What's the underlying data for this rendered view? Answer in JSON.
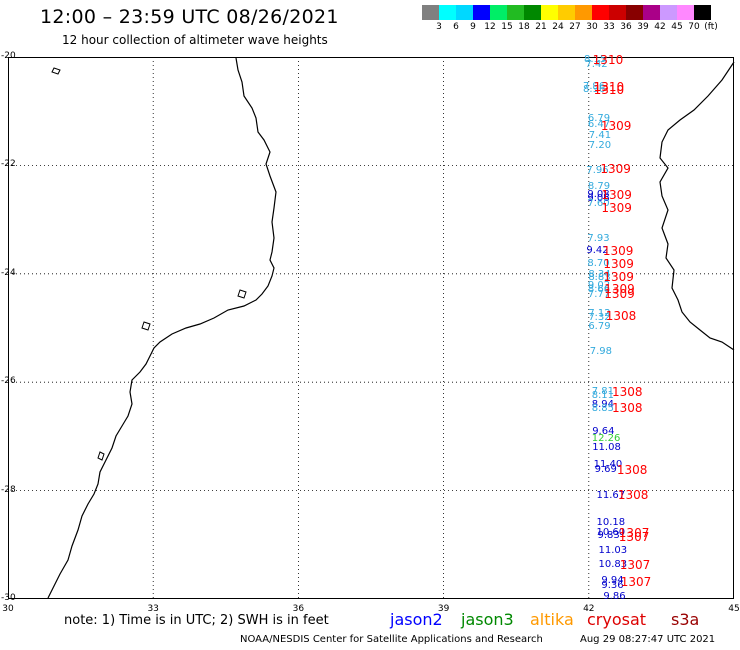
{
  "header": {
    "title": "12:00 – 23:59 UTC 08/26/2021",
    "subtitle": "12 hour collection of altimeter wave heights"
  },
  "scale": {
    "colors": [
      "#808080",
      "#00ffff",
      "#00d8ff",
      "#0000ff",
      "#00ee66",
      "#22bb22",
      "#008800",
      "#ffff00",
      "#ffcc00",
      "#ff9900",
      "#ff0000",
      "#cc0000",
      "#880000",
      "#aa0088",
      "#cc99ff",
      "#ff88ff",
      "#000000"
    ],
    "labels": [
      "3",
      "6",
      "9",
      "12",
      "15",
      "18",
      "21",
      "24",
      "27",
      "30",
      "33",
      "36",
      "39",
      "42",
      "45",
      "70",
      "(ft)"
    ]
  },
  "axes": {
    "lat_labels": [
      "-20",
      "-22",
      "-24",
      "-26",
      "-28",
      "-30"
    ],
    "lon_labels": [
      "30",
      "33",
      "36",
      "39",
      "42",
      "45"
    ]
  },
  "observations": {
    "values": [
      {
        "text": "8.15",
        "lat": -20.05,
        "lon": 41.9,
        "color": "#33aadd"
      },
      {
        "text": "7.42",
        "lat": -20.15,
        "lon": 41.93,
        "color": "#33aadd"
      },
      {
        "text": "7.96",
        "lat": -20.55,
        "lon": 41.88,
        "color": "#33aadd"
      },
      {
        "text": "8.96",
        "lat": -20.6,
        "lon": 41.88,
        "color": "#33aadd"
      },
      {
        "text": "6.79",
        "lat": -21.15,
        "lon": 41.98,
        "color": "#33aadd"
      },
      {
        "text": "6.47",
        "lat": -21.25,
        "lon": 41.98,
        "color": "#33aadd"
      },
      {
        "text": "7.41",
        "lat": -21.45,
        "lon": 42.0,
        "color": "#33aadd"
      },
      {
        "text": "7.20",
        "lat": -21.65,
        "lon": 42.0,
        "color": "#33aadd"
      },
      {
        "text": "7.96",
        "lat": -22.1,
        "lon": 41.95,
        "color": "#33aadd"
      },
      {
        "text": "8.79",
        "lat": -22.4,
        "lon": 41.98,
        "color": "#33aadd"
      },
      {
        "text": "9.08",
        "lat": -22.55,
        "lon": 41.97,
        "color": "#0000cc"
      },
      {
        "text": "9.06",
        "lat": -22.62,
        "lon": 41.97,
        "color": "#0000cc"
      },
      {
        "text": "7.60",
        "lat": -22.72,
        "lon": 41.97,
        "color": "#33aadd"
      },
      {
        "text": "7.93",
        "lat": -23.35,
        "lon": 41.97,
        "color": "#33aadd"
      },
      {
        "text": "9.42",
        "lat": -23.58,
        "lon": 41.95,
        "color": "#0000cc"
      },
      {
        "text": "8.70",
        "lat": -23.82,
        "lon": 41.97,
        "color": "#33aadd"
      },
      {
        "text": "8.34",
        "lat": -24.02,
        "lon": 41.99,
        "color": "#33aadd"
      },
      {
        "text": "8.83",
        "lat": -24.08,
        "lon": 41.99,
        "color": "#33aadd"
      },
      {
        "text": "9.02",
        "lat": -24.23,
        "lon": 41.98,
        "color": "#33aadd"
      },
      {
        "text": "8.66",
        "lat": -24.3,
        "lon": 41.98,
        "color": "#33aadd"
      },
      {
        "text": "7.77",
        "lat": -24.4,
        "lon": 41.98,
        "color": "#33aadd"
      },
      {
        "text": "7.12",
        "lat": -24.75,
        "lon": 41.99,
        "color": "#33aadd"
      },
      {
        "text": "7.32",
        "lat": -24.82,
        "lon": 41.99,
        "color": "#33aadd"
      },
      {
        "text": "6.79",
        "lat": -24.98,
        "lon": 41.99,
        "color": "#33aadd"
      },
      {
        "text": "7.98",
        "lat": -25.45,
        "lon": 42.02,
        "color": "#33aadd"
      },
      {
        "text": "7.81",
        "lat": -26.18,
        "lon": 42.06,
        "color": "#33aadd"
      },
      {
        "text": "8.11",
        "lat": -26.26,
        "lon": 42.06,
        "color": "#33aadd"
      },
      {
        "text": "8.94",
        "lat": -26.42,
        "lon": 42.06,
        "color": "#0000cc"
      },
      {
        "text": "8.85",
        "lat": -26.5,
        "lon": 42.06,
        "color": "#33aadd"
      },
      {
        "text": "9.64",
        "lat": -26.92,
        "lon": 42.07,
        "color": "#0000cc"
      },
      {
        "text": "12.26",
        "lat": -27.04,
        "lon": 42.06,
        "color": "#33cc33"
      },
      {
        "text": "11.08",
        "lat": -27.22,
        "lon": 42.07,
        "color": "#0000cc"
      },
      {
        "text": "11.40",
        "lat": -27.52,
        "lon": 42.1,
        "color": "#0000cc"
      },
      {
        "text": "9.69",
        "lat": -27.62,
        "lon": 42.12,
        "color": "#0000cc"
      },
      {
        "text": "11.67",
        "lat": -28.1,
        "lon": 42.16,
        "color": "#0000cc"
      },
      {
        "text": "10.18",
        "lat": -28.6,
        "lon": 42.16,
        "color": "#0000cc"
      },
      {
        "text": "10.60",
        "lat": -28.78,
        "lon": 42.16,
        "color": "#0000cc"
      },
      {
        "text": "9.83",
        "lat": -28.84,
        "lon": 42.18,
        "color": "#0000cc"
      },
      {
        "text": "11.03",
        "lat": -29.12,
        "lon": 42.2,
        "color": "#0000cc"
      },
      {
        "text": "10.83",
        "lat": -29.38,
        "lon": 42.2,
        "color": "#0000cc"
      },
      {
        "text": "9.94",
        "lat": -29.67,
        "lon": 42.26,
        "color": "#0000cc"
      },
      {
        "text": "9.36",
        "lat": -29.76,
        "lon": 42.26,
        "color": "#0000cc"
      },
      {
        "text": "9.86",
        "lat": -29.97,
        "lon": 42.3,
        "color": "#0000cc"
      }
    ],
    "times": [
      {
        "text": "1310",
        "lat": -20.05,
        "lon": 42.08
      },
      {
        "text": "1310",
        "lat": -20.55,
        "lon": 42.1
      },
      {
        "text": "1310",
        "lat": -20.6,
        "lon": 42.1
      },
      {
        "text": "1309",
        "lat": -21.28,
        "lon": 42.25
      },
      {
        "text": "1309",
        "lat": -22.06,
        "lon": 42.24
      },
      {
        "text": "1309",
        "lat": -22.55,
        "lon": 42.26
      },
      {
        "text": "1309",
        "lat": -22.78,
        "lon": 42.26
      },
      {
        "text": "1309",
        "lat": -23.58,
        "lon": 42.29
      },
      {
        "text": "1309",
        "lat": -23.82,
        "lon": 42.3
      },
      {
        "text": "1309",
        "lat": -24.05,
        "lon": 42.3
      },
      {
        "text": "1309",
        "lat": -24.28,
        "lon": 42.32
      },
      {
        "text": "1309",
        "lat": -24.38,
        "lon": 42.32
      },
      {
        "text": "1308",
        "lat": -24.78,
        "lon": 42.35
      },
      {
        "text": "1308",
        "lat": -26.18,
        "lon": 42.48
      },
      {
        "text": "1308",
        "lat": -26.48,
        "lon": 42.48
      },
      {
        "text": "1308",
        "lat": -27.62,
        "lon": 42.58
      },
      {
        "text": "1308",
        "lat": -28.08,
        "lon": 42.6
      },
      {
        "text": "1307",
        "lat": -28.78,
        "lon": 42.62
      },
      {
        "text": "1307",
        "lat": -28.86,
        "lon": 42.62
      },
      {
        "text": "1307",
        "lat": -29.38,
        "lon": 42.64
      },
      {
        "text": "1307",
        "lat": -29.68,
        "lon": 42.66
      }
    ],
    "time_color": "#ff0000"
  },
  "footer": {
    "note": "note:  1) Time is in UTC;  2) SWH is in feet",
    "satellites": [
      {
        "name": "jason2",
        "color": "#0000ff"
      },
      {
        "name": "jason3",
        "color": "#008800"
      },
      {
        "name": "altika",
        "color": "#ff9900"
      },
      {
        "name": "cryosat",
        "color": "#dd0000"
      },
      {
        "name": "s3a",
        "color": "#990000"
      }
    ],
    "credit": "NOAA/NESDIS Center for Satellite Applications and Research",
    "timestamp": "Aug 29 08:27:47 UTC 2021"
  }
}
